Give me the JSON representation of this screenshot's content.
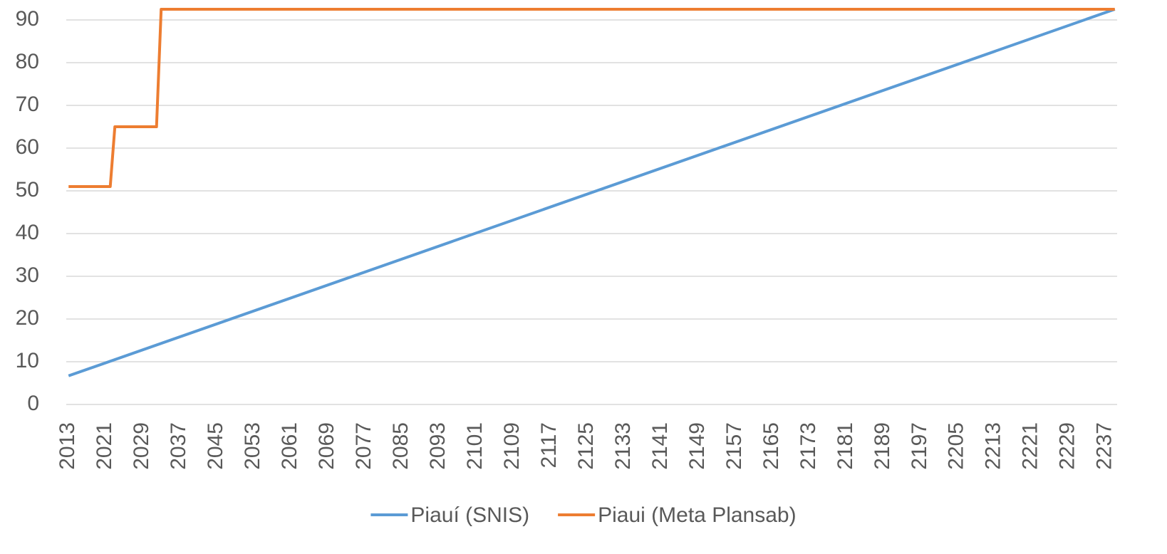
{
  "chart_data": {
    "type": "line",
    "series": [
      {
        "name": "Piauí (SNIS)",
        "color": "#5b9bd5",
        "x": [
          2013,
          2239
        ],
        "values": [
          6.7,
          92.5
        ]
      },
      {
        "name": "Piaui (Meta Plansab)",
        "color": "#ed7d31",
        "x": [
          2013,
          2022,
          2023,
          2032,
          2033,
          2239
        ],
        "values": [
          51,
          51,
          65,
          65,
          92.5,
          92.5
        ]
      }
    ],
    "xlim": [
      2012.5,
      2239.5
    ],
    "xticks": [
      2013,
      2021,
      2029,
      2037,
      2045,
      2053,
      2061,
      2069,
      2077,
      2085,
      2093,
      2101,
      2109,
      2117,
      2125,
      2133,
      2141,
      2149,
      2157,
      2165,
      2173,
      2181,
      2189,
      2197,
      2205,
      2213,
      2221,
      2229,
      2237
    ],
    "ylim": [
      0,
      95
    ],
    "yticks": [
      0,
      10,
      20,
      30,
      40,
      50,
      60,
      70,
      80,
      90
    ],
    "grid": true,
    "legend": "bottom"
  }
}
